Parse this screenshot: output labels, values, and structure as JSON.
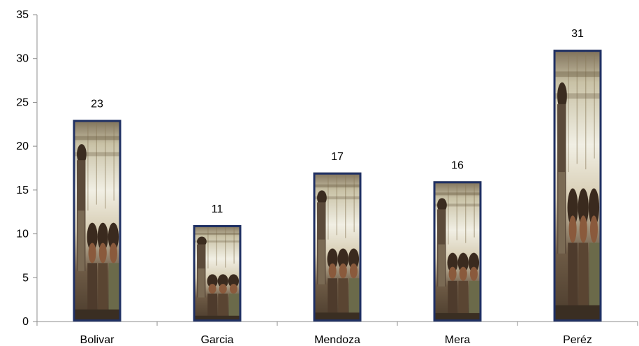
{
  "chart_data": {
    "type": "bar",
    "title": "",
    "xlabel": "",
    "ylabel": "",
    "categories": [
      "Bolivar",
      "Garcia",
      "Mendoza",
      "Mera",
      "Peréz"
    ],
    "values": [
      23,
      11,
      17,
      16,
      31
    ],
    "data_labels": [
      "23",
      "11",
      "17",
      "16",
      "31"
    ],
    "ylim": [
      0,
      35
    ],
    "yticks": [
      0,
      5,
      10,
      15,
      20,
      25,
      30,
      35
    ],
    "ytick_labels": [
      "0",
      "5",
      "10",
      "15",
      "20",
      "25",
      "30",
      "35"
    ],
    "grid": false,
    "legend": "none",
    "bar_fill": "photo",
    "bar_border_color": "#1f3064"
  }
}
